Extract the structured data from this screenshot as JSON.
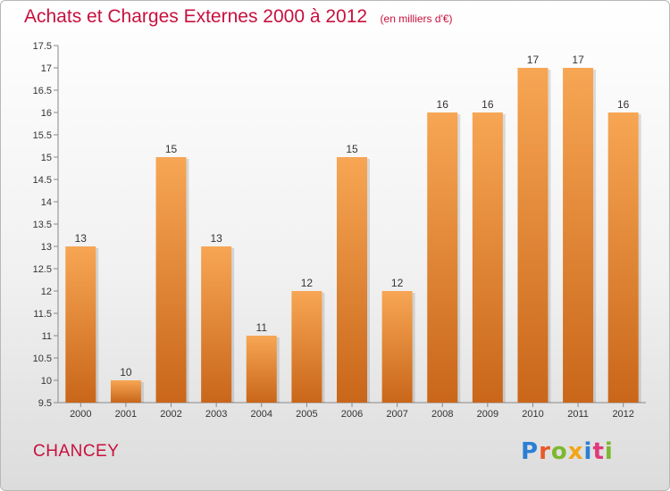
{
  "header": {
    "title": "Achats et Charges Externes 2000 à 2012",
    "unit": "(en milliers d'€)"
  },
  "footer": {
    "commune": "CHANCEY",
    "logo_text": "Proxiti"
  },
  "colors": {
    "title": "#c8103d",
    "bar_top": "#f7a654",
    "bar_bottom": "#c9661a"
  },
  "chart_data": {
    "type": "bar",
    "title": "Achats et Charges Externes 2000 à 2012",
    "xlabel": "",
    "ylabel": "",
    "categories": [
      "2000",
      "2001",
      "2002",
      "2003",
      "2004",
      "2005",
      "2006",
      "2007",
      "2008",
      "2009",
      "2010",
      "2011",
      "2012"
    ],
    "values": [
      13,
      10,
      15,
      13,
      11,
      12,
      15,
      12,
      16,
      16,
      17,
      17,
      16
    ],
    "ylim": [
      9.5,
      17.5
    ],
    "yticks": [
      "9.5",
      "10",
      "10.5",
      "11",
      "11.5",
      "12",
      "12.5",
      "13",
      "13.5",
      "14",
      "14.5",
      "15",
      "15.5",
      "16",
      "16.5",
      "17",
      "17.5"
    ],
    "grid": false,
    "legend": "none"
  }
}
